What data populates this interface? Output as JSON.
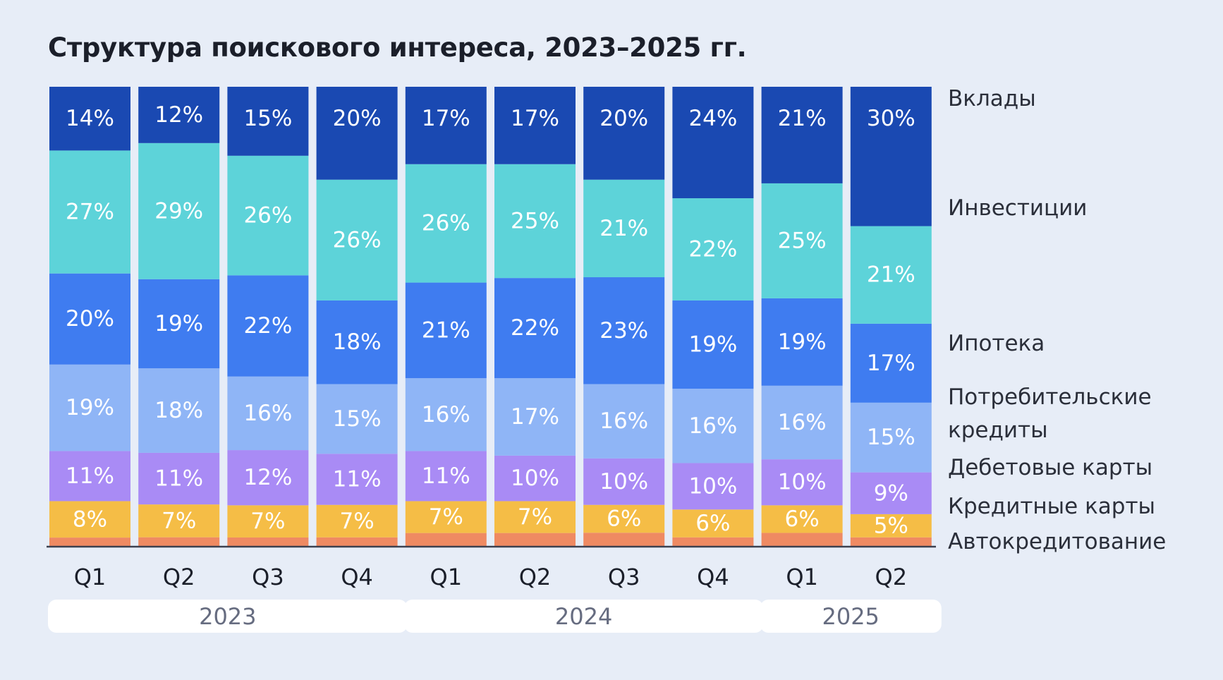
{
  "chart_data": {
    "type": "bar",
    "stacked": true,
    "title": "Структура поискового интереса, 2023–2025 гг.",
    "categories": [
      "Q1",
      "Q2",
      "Q3",
      "Q4",
      "Q1",
      "Q2",
      "Q3",
      "Q4",
      "Q1",
      "Q2"
    ],
    "groups": [
      {
        "label": "2023",
        "count": 4
      },
      {
        "label": "2024",
        "count": 4
      },
      {
        "label": "2025",
        "count": 2
      }
    ],
    "series": [
      {
        "name": "Автокредитование",
        "color": "#ef8a62",
        "values": [
          2,
          2,
          2,
          2,
          3,
          3,
          3,
          2,
          3,
          2
        ],
        "labels": [
          "",
          "",
          "",
          "",
          "",
          "",
          "",
          "",
          "",
          ""
        ]
      },
      {
        "name": "Кредитные карты",
        "color": "#f5bd46",
        "values": [
          8,
          7,
          7,
          7,
          7,
          7,
          6,
          6,
          6,
          5
        ],
        "labels": [
          "8%",
          "7%",
          "7%",
          "7%",
          "7%",
          "7%",
          "6%",
          "6%",
          "6%",
          "5%"
        ]
      },
      {
        "name": "Дебетовые карты",
        "color": "#a98bf5",
        "values": [
          11,
          11,
          12,
          11,
          11,
          10,
          10,
          10,
          10,
          9
        ],
        "labels": [
          "11%",
          "11%",
          "12%",
          "11%",
          "11%",
          "10%",
          "10%",
          "10%",
          "10%",
          "9%"
        ]
      },
      {
        "name": "Потребительские кредиты",
        "color": "#8fb5f6",
        "values": [
          19,
          18,
          16,
          15,
          16,
          17,
          16,
          16,
          16,
          15
        ],
        "labels": [
          "19%",
          "18%",
          "16%",
          "15%",
          "16%",
          "17%",
          "16%",
          "16%",
          "16%",
          "15%"
        ]
      },
      {
        "name": "Ипотека",
        "color": "#3f7cf0",
        "values": [
          20,
          19,
          22,
          18,
          21,
          22,
          23,
          19,
          19,
          17
        ],
        "labels": [
          "20%",
          "19%",
          "22%",
          "18%",
          "21%",
          "22%",
          "23%",
          "19%",
          "19%",
          "17%"
        ]
      },
      {
        "name": "Инвестиции",
        "color": "#5dd3d9",
        "values": [
          27,
          29,
          26,
          26,
          26,
          25,
          21,
          22,
          25,
          21
        ],
        "labels": [
          "27%",
          "29%",
          "26%",
          "26%",
          "26%",
          "25%",
          "21%",
          "22%",
          "25%",
          "21%"
        ]
      },
      {
        "name": "Вклады",
        "color": "#1a49b2",
        "values": [
          14,
          12,
          15,
          20,
          17,
          17,
          20,
          24,
          21,
          30
        ],
        "labels": [
          "14%",
          "12%",
          "15%",
          "20%",
          "17%",
          "17%",
          "20%",
          "24%",
          "21%",
          "30%"
        ]
      }
    ],
    "legend": [
      {
        "lines": [
          "Вклады"
        ]
      },
      {
        "lines": [
          "Инвестиции"
        ]
      },
      {
        "lines": [
          "Ипотека"
        ]
      },
      {
        "lines": [
          "Потребительские",
          "кредиты"
        ]
      },
      {
        "lines": [
          "Дебетовые карты"
        ]
      },
      {
        "lines": [
          "Кредитные карты"
        ]
      },
      {
        "lines": [
          "Автокредитование"
        ]
      }
    ],
    "legend_position": "right"
  }
}
